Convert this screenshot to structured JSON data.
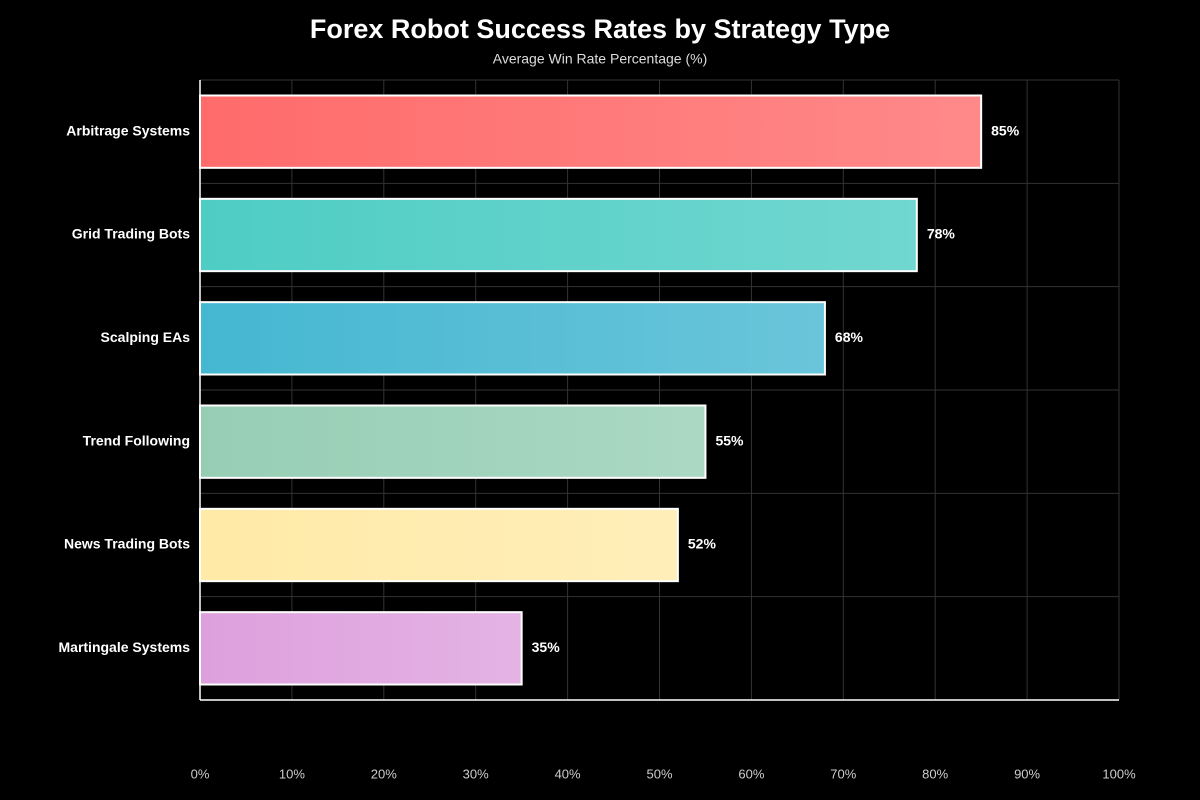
{
  "chart_data": {
    "type": "hbar",
    "title": "Forex Robot Success Rates by Strategy Type",
    "subtitle": "Average Win Rate Percentage (%)",
    "categories": [
      "Arbitrage Systems",
      "Grid Trading Bots",
      "Scalping EAs",
      "Trend Following",
      "News Trading Bots",
      "Martingale Systems"
    ],
    "values": [
      85,
      78,
      68,
      55,
      52,
      35
    ],
    "value_labels": [
      "85%",
      "78%",
      "68%",
      "55%",
      "52%",
      "35%"
    ],
    "colors": [
      "#FF6B6B",
      "#4ECDC4",
      "#45B7D1",
      "#96CEB4",
      "#FFEAA7",
      "#DDA0DD"
    ],
    "xlim": [
      0,
      100
    ],
    "xticks": [
      {
        "value": 0,
        "label": "0%"
      },
      {
        "value": 10,
        "label": "10%"
      },
      {
        "value": 20,
        "label": "20%"
      },
      {
        "value": 30,
        "label": "30%"
      },
      {
        "value": 40,
        "label": "40%"
      },
      {
        "value": 50,
        "label": "50%"
      },
      {
        "value": 60,
        "label": "60%"
      },
      {
        "value": 70,
        "label": "70%"
      },
      {
        "value": 80,
        "label": "80%"
      },
      {
        "value": 90,
        "label": "90%"
      },
      {
        "value": 100,
        "label": "100%"
      }
    ],
    "grid": true
  }
}
